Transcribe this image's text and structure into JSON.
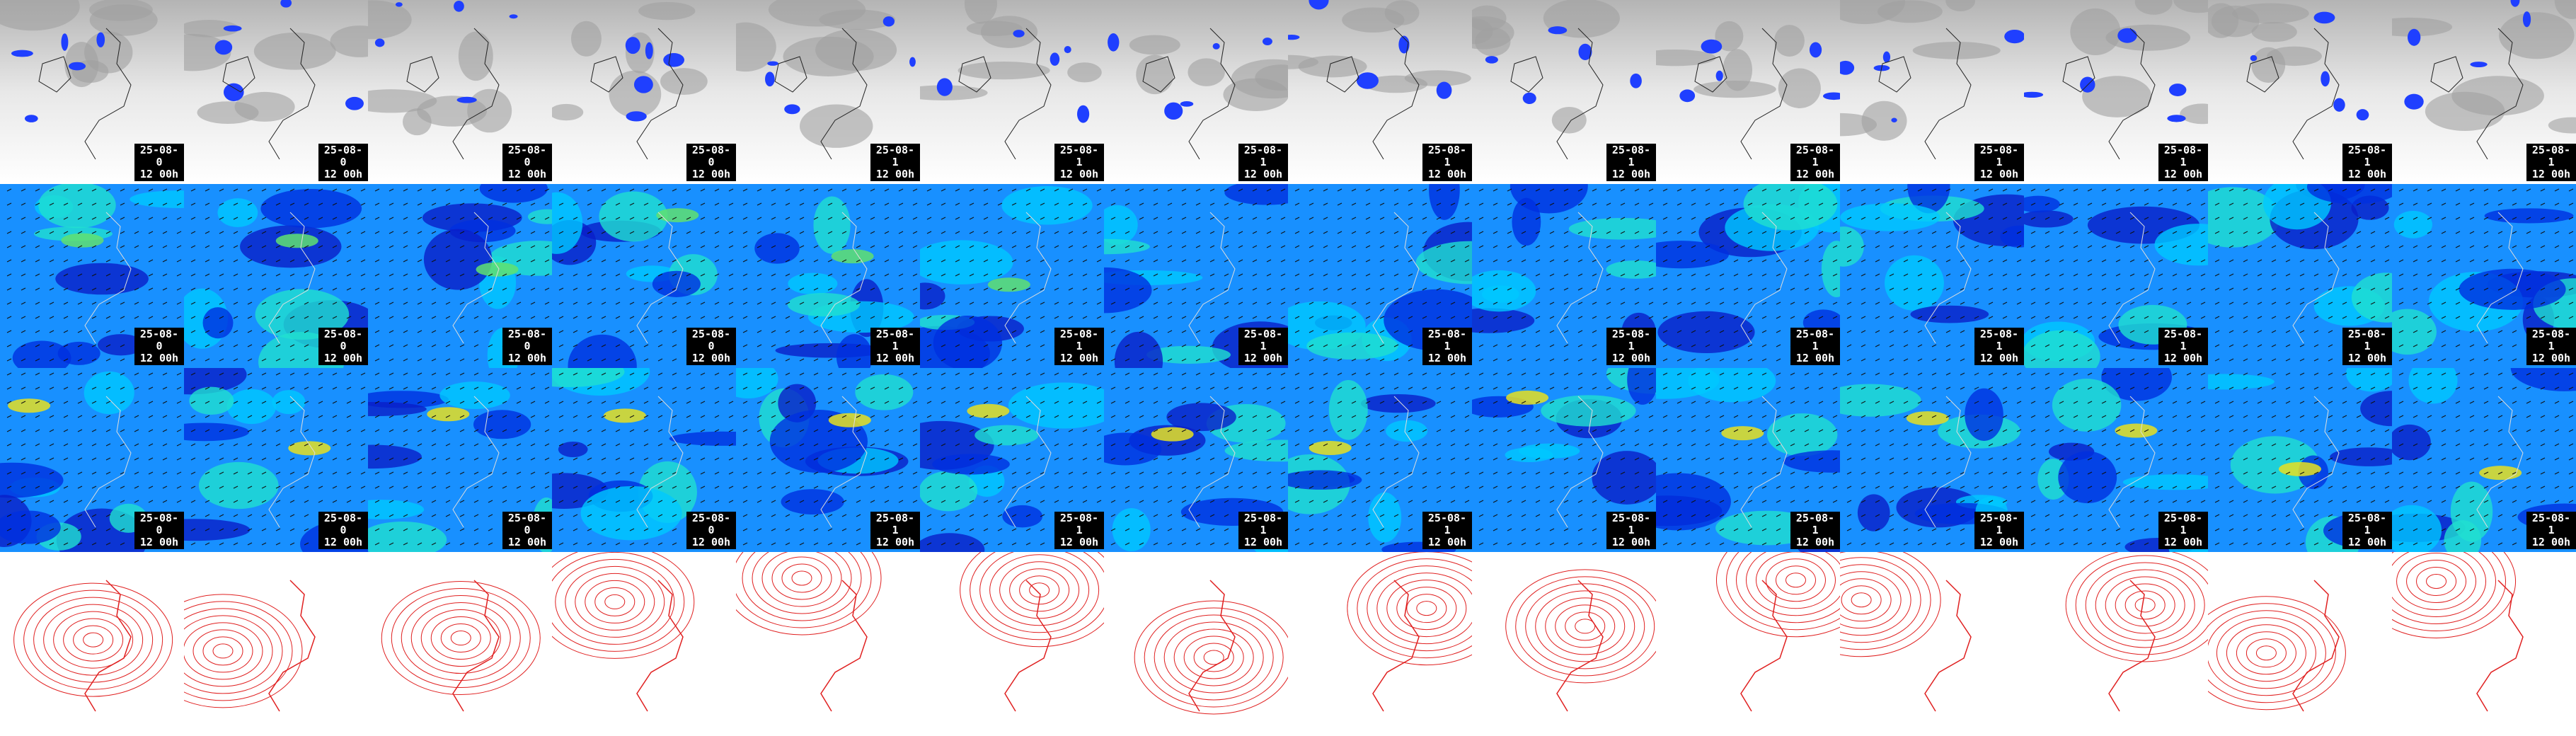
{
  "rows": [
    {
      "tiles": [
        {
          "date": "25-08-0",
          "time": "12 00h"
        },
        {
          "date": "25-08-0",
          "time": "12 00h"
        },
        {
          "date": "25-08-0",
          "time": "12 00h"
        },
        {
          "date": "25-08-0",
          "time": "12 00h"
        },
        {
          "date": "25-08-1",
          "time": "12 00h"
        },
        {
          "date": "25-08-1",
          "time": "12 00h"
        },
        {
          "date": "25-08-1",
          "time": "12 00h"
        },
        {
          "date": "25-08-1",
          "time": "12 00h"
        },
        {
          "date": "25-08-1",
          "time": "12 00h"
        },
        {
          "date": "25-08-1",
          "time": "12 00h"
        },
        {
          "date": "25-08-1",
          "time": "12 00h"
        },
        {
          "date": "25-08-1",
          "time": "12 00h"
        },
        {
          "date": "25-08-1",
          "time": "12 00h"
        },
        {
          "date": "25-08-1",
          "time": "12 00h"
        }
      ]
    },
    {
      "tiles": [
        {
          "date": "25-08-0",
          "time": "12 00h"
        },
        {
          "date": "25-08-0",
          "time": "12 00h"
        },
        {
          "date": "25-08-0",
          "time": "12 00h"
        },
        {
          "date": "25-08-0",
          "time": "12 00h"
        },
        {
          "date": "25-08-1",
          "time": "12 00h"
        },
        {
          "date": "25-08-1",
          "time": "12 00h"
        },
        {
          "date": "25-08-1",
          "time": "12 00h"
        },
        {
          "date": "25-08-1",
          "time": "12 00h"
        },
        {
          "date": "25-08-1",
          "time": "12 00h"
        },
        {
          "date": "25-08-1",
          "time": "12 00h"
        },
        {
          "date": "25-08-1",
          "time": "12 00h"
        },
        {
          "date": "25-08-1",
          "time": "12 00h"
        },
        {
          "date": "25-08-1",
          "time": "12 00h"
        },
        {
          "date": "25-08-1",
          "time": "12 00h"
        }
      ]
    },
    {
      "tiles": [
        {
          "date": "25-08-0",
          "time": "12 00h"
        },
        {
          "date": "25-08-0",
          "time": "12 00h"
        },
        {
          "date": "25-08-0",
          "time": "12 00h"
        },
        {
          "date": "25-08-0",
          "time": "12 00h"
        },
        {
          "date": "25-08-1",
          "time": "12 00h"
        },
        {
          "date": "25-08-1",
          "time": "12 00h"
        },
        {
          "date": "25-08-1",
          "time": "12 00h"
        },
        {
          "date": "25-08-1",
          "time": "12 00h"
        },
        {
          "date": "25-08-1",
          "time": "12 00h"
        },
        {
          "date": "25-08-1",
          "time": "12 00h"
        },
        {
          "date": "25-08-1",
          "time": "12 00h"
        },
        {
          "date": "25-08-1",
          "time": "12 00h"
        },
        {
          "date": "25-08-1",
          "time": "12 00h"
        },
        {
          "date": "25-08-1",
          "time": "12 00h"
        }
      ]
    }
  ]
}
